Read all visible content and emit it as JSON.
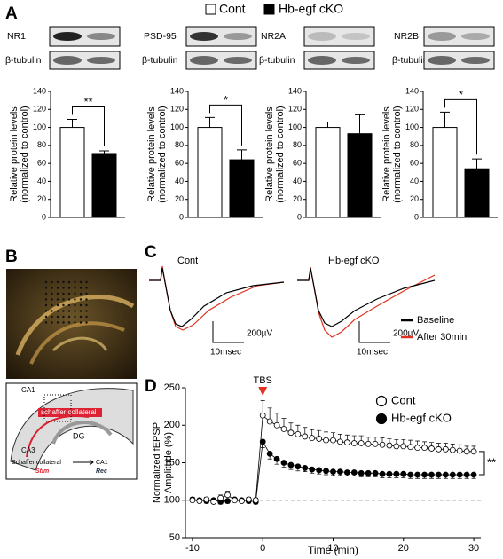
{
  "figure": {
    "panels": [
      "A",
      "B",
      "C",
      "D"
    ],
    "legend": [
      {
        "name": "Cont",
        "color": "#ffffff"
      },
      {
        "name": "Hb-egf cKO",
        "color": "#000000"
      }
    ],
    "blots": [
      {
        "label": "NR1",
        "loading": "β-tubulin"
      },
      {
        "label": "PSD-95",
        "loading": "β-tubulin"
      },
      {
        "label": "NR2A",
        "loading": "β-tubulin"
      },
      {
        "label": "NR2B",
        "loading": "β-tubulin"
      }
    ],
    "schematic": {
      "labels": [
        "CA1",
        "CA3",
        "DG"
      ],
      "highlight": "schaffer collateral",
      "pathway": "Schaffer collateral",
      "target": "CA1",
      "stim": "Stim",
      "rec": "Rec"
    },
    "traces": {
      "groups": [
        "Cont",
        "Hb-egf cKO"
      ],
      "legend": [
        {
          "name": "Baseline",
          "color": "#000000"
        },
        {
          "name": "After 30min",
          "color": "#e0321e"
        }
      ],
      "scale_v": "200µV",
      "scale_t": "10msec"
    }
  },
  "chart_data": [
    {
      "type": "bar",
      "ylabel": [
        "Relative protein levels",
        "(normalized to control)"
      ],
      "values": [
        100,
        71
      ],
      "errors": [
        9,
        3
      ],
      "colors": [
        "#ffffff",
        "#000000"
      ],
      "ylim": [
        0,
        140
      ],
      "yticks": [
        0,
        20,
        40,
        60,
        80,
        100,
        120,
        140
      ],
      "significance": "**"
    },
    {
      "type": "bar",
      "ylabel": [
        "Relative protein levels",
        "(normalized to control)"
      ],
      "values": [
        100,
        64
      ],
      "errors": [
        11,
        11
      ],
      "colors": [
        "#ffffff",
        "#000000"
      ],
      "ylim": [
        0,
        140
      ],
      "yticks": [
        0,
        20,
        40,
        60,
        80,
        100,
        120,
        140
      ],
      "significance": "*"
    },
    {
      "type": "bar",
      "ylabel": [
        "Relative protein levels",
        "(normalized to control)"
      ],
      "values": [
        100,
        93
      ],
      "errors": [
        6,
        21
      ],
      "colors": [
        "#ffffff",
        "#000000"
      ],
      "ylim": [
        0,
        140
      ],
      "yticks": [
        0,
        20,
        40,
        60,
        80,
        100,
        120,
        140
      ]
    },
    {
      "type": "bar",
      "ylabel": [
        "Relative protein levels",
        "(normalized to control)"
      ],
      "values": [
        100,
        54
      ],
      "errors": [
        17,
        11
      ],
      "colors": [
        "#ffffff",
        "#000000"
      ],
      "ylim": [
        0,
        140
      ],
      "yticks": [
        0,
        20,
        40,
        60,
        80,
        100,
        120,
        140
      ],
      "significance": "*"
    },
    {
      "type": "line",
      "ylabel": [
        "Normalized fEPSP",
        "Amplitude (%)"
      ],
      "xlabel": "Time (min)",
      "x": [
        -10,
        -9,
        -8,
        -7,
        -6,
        -5,
        -4,
        -3,
        -2,
        -1,
        0,
        1,
        2,
        3,
        4,
        5,
        6,
        7,
        8,
        9,
        10,
        11,
        12,
        13,
        14,
        15,
        16,
        17,
        18,
        19,
        20,
        21,
        22,
        23,
        24,
        25,
        26,
        27,
        28,
        29,
        30
      ],
      "xlim": [
        -11,
        31
      ],
      "xticks": [
        -10,
        0,
        10,
        20,
        30
      ],
      "ylim": [
        50,
        250
      ],
      "yticks": [
        50,
        100,
        150,
        200,
        250
      ],
      "series": [
        {
          "name": "Cont",
          "color": "#ffffff",
          "values": [
            100,
            99,
            101,
            98,
            103,
            107,
            100,
            99,
            101,
            100,
            213,
            205,
            200,
            195,
            190,
            188,
            185,
            183,
            182,
            180,
            180,
            178,
            177,
            176,
            176,
            175,
            175,
            174,
            173,
            172,
            172,
            171,
            170,
            170,
            169,
            168,
            168,
            167,
            166,
            165,
            165
          ],
          "errors": [
            4,
            3,
            3,
            3,
            4,
            5,
            3,
            3,
            3,
            3,
            20,
            18,
            16,
            14,
            13,
            12,
            12,
            11,
            11,
            11,
            10,
            10,
            10,
            10,
            10,
            9,
            9,
            9,
            9,
            9,
            9,
            9,
            9,
            8,
            8,
            8,
            8,
            8,
            8,
            7,
            7
          ]
        },
        {
          "name": "Hb-egf cKO",
          "color": "#000000",
          "values": [
            101,
            100,
            99,
            100,
            98,
            99,
            101,
            100,
            99,
            98,
            178,
            162,
            155,
            150,
            147,
            145,
            143,
            141,
            140,
            139,
            138,
            138,
            137,
            137,
            136,
            136,
            136,
            135,
            135,
            135,
            135,
            134,
            134,
            134,
            134,
            134,
            134,
            134,
            134,
            134,
            134
          ],
          "errors": [
            3,
            3,
            3,
            3,
            3,
            3,
            3,
            3,
            3,
            3,
            8,
            7,
            7,
            6,
            6,
            6,
            5,
            5,
            5,
            5,
            5,
            5,
            5,
            5,
            5,
            5,
            5,
            5,
            5,
            5,
            5,
            5,
            5,
            5,
            5,
            5,
            5,
            5,
            5,
            5,
            5
          ]
        }
      ],
      "reference_line": 100,
      "annotations": [
        {
          "text": "TBS",
          "x": 0
        }
      ],
      "significance": "**",
      "legend": "upper right"
    }
  ]
}
